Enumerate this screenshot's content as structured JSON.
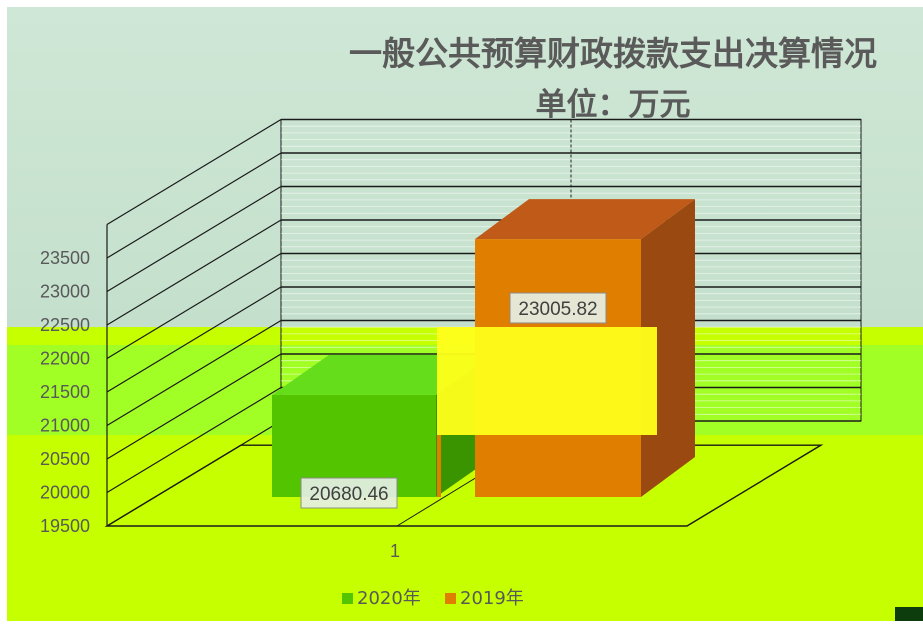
{
  "chart_data": {
    "type": "bar",
    "title": "一般公共预算财政拨款支出决算情况",
    "subtitle": "单位：万元",
    "categories": [
      "1"
    ],
    "series": [
      {
        "name": "2020年",
        "values": [
          20680.46
        ],
        "color": "#52c400"
      },
      {
        "name": "2019年",
        "values": [
          23005.82
        ],
        "color": "#e07e00"
      }
    ],
    "yticks": [
      "19500",
      "20000",
      "20500",
      "21000",
      "21500",
      "22000",
      "22500",
      "23000",
      "23500"
    ],
    "ylim": [
      19500,
      24000
    ],
    "xlabel": "",
    "ylabel": "",
    "legend_position": "bottom",
    "grid": true
  },
  "colors": {
    "background_top": "#cde6d2",
    "background_bottom": "#c6ff00",
    "glitch_band": "#9dff2a",
    "glitch_yellow": "#ffff1a"
  }
}
